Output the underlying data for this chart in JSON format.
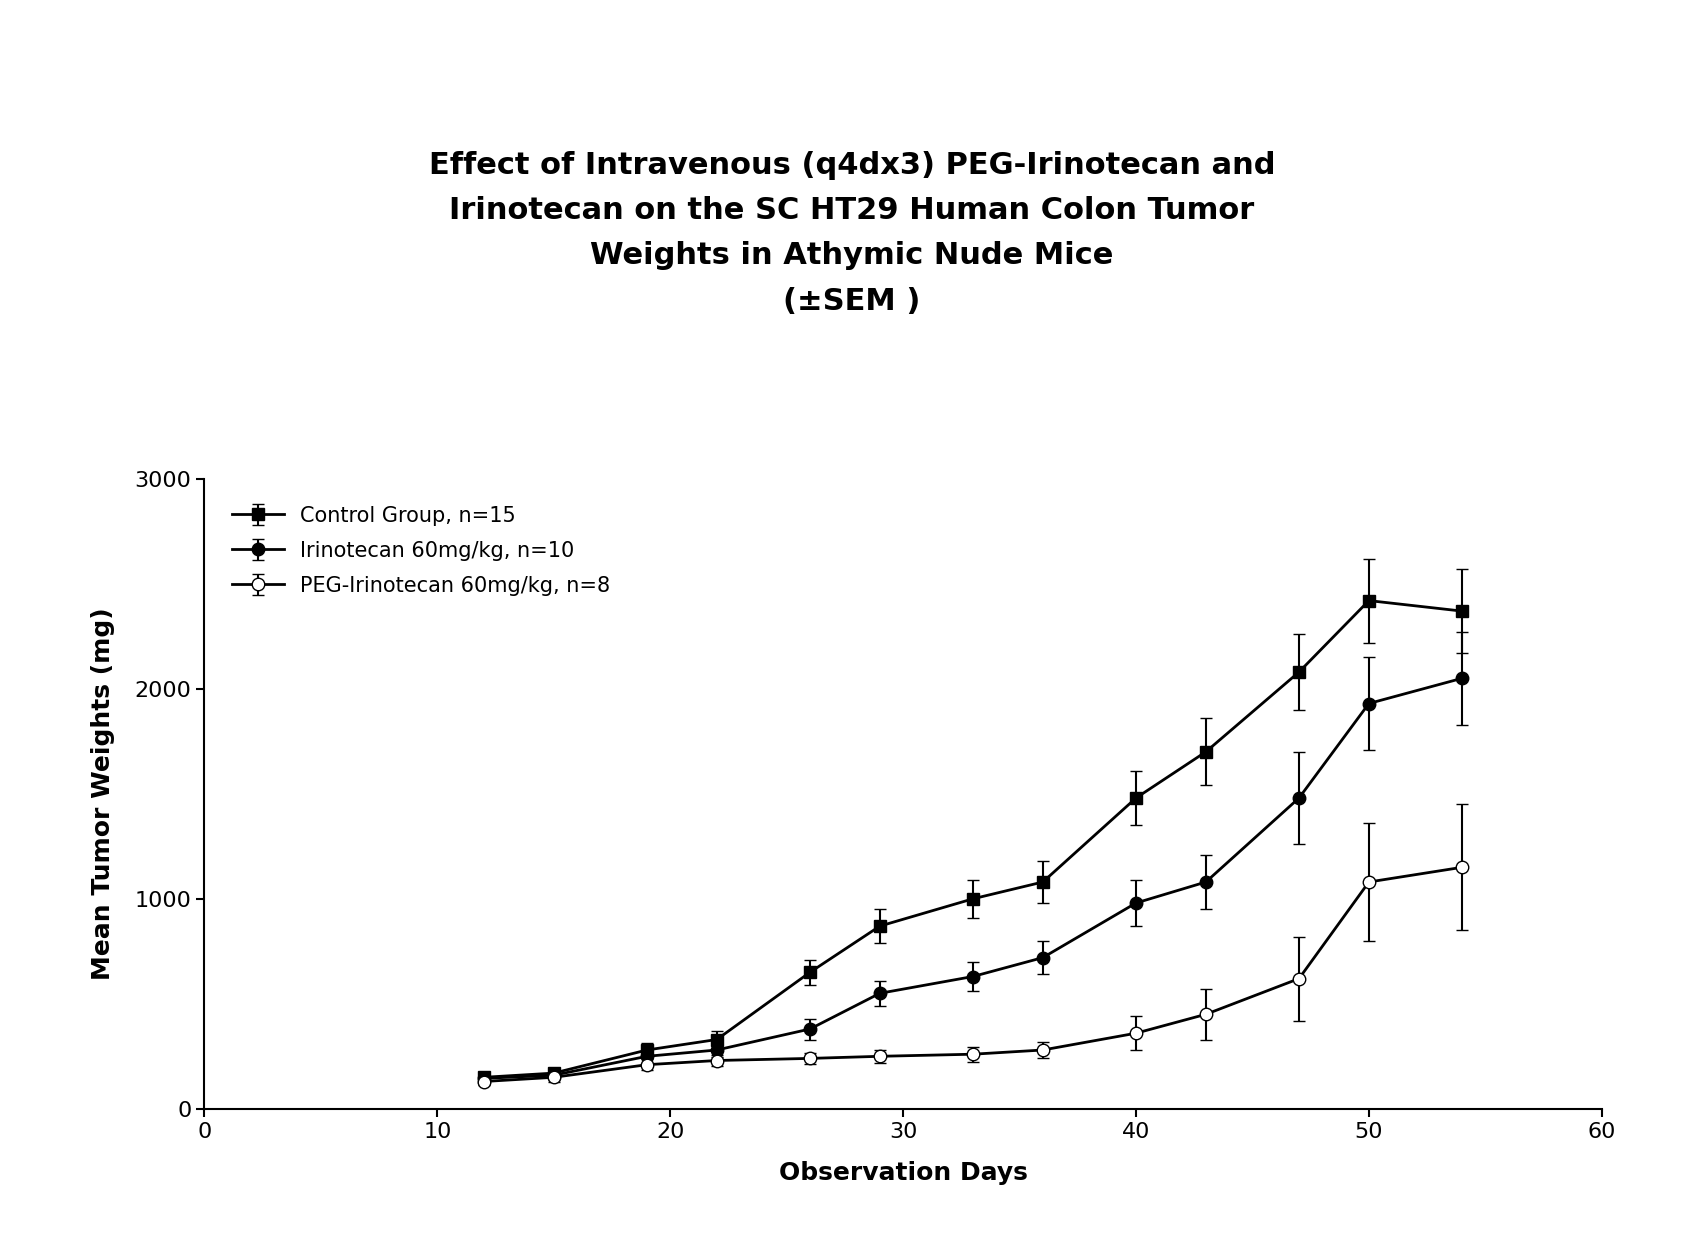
{
  "title": "Effect of Intravenous (q4dx3) PEG-Irinotecan and\nIrinotecan on the SC HT29 Human Colon Tumor\nWeights in Athymic Nude Mice\n(±SEM )",
  "xlabel": "Observation Days",
  "ylabel": "Mean Tumor Weights (mg)",
  "xlim": [
    0,
    60
  ],
  "ylim": [
    0,
    3000
  ],
  "xticks": [
    0,
    10,
    20,
    30,
    40,
    50,
    60
  ],
  "yticks": [
    0,
    1000,
    2000,
    3000
  ],
  "legend_labels": [
    "Control Group, n=15",
    "Irinotecan 60mg/kg, n=10",
    "PEG-Irinotecan 60mg/kg, n=8"
  ],
  "control": {
    "x": [
      12,
      15,
      19,
      22,
      26,
      29,
      33,
      36,
      40,
      43,
      47,
      50,
      54
    ],
    "y": [
      150,
      170,
      280,
      330,
      650,
      870,
      1000,
      1080,
      1480,
      1700,
      2080,
      2420,
      2370
    ],
    "yerr": [
      20,
      25,
      35,
      40,
      60,
      80,
      90,
      100,
      130,
      160,
      180,
      200,
      200
    ]
  },
  "irinotecan": {
    "x": [
      12,
      15,
      19,
      22,
      26,
      29,
      33,
      36,
      40,
      43,
      47,
      50,
      54
    ],
    "y": [
      145,
      160,
      250,
      280,
      380,
      550,
      630,
      720,
      980,
      1080,
      1480,
      1930,
      2050
    ],
    "yerr": [
      18,
      22,
      30,
      35,
      50,
      60,
      70,
      80,
      110,
      130,
      220,
      220,
      220
    ]
  },
  "peg_irinotecan": {
    "x": [
      12,
      15,
      19,
      22,
      26,
      29,
      33,
      36,
      40,
      43,
      47,
      50,
      54
    ],
    "y": [
      130,
      150,
      210,
      230,
      240,
      250,
      260,
      280,
      360,
      450,
      620,
      1080,
      1150
    ],
    "yerr": [
      15,
      20,
      25,
      25,
      25,
      30,
      35,
      40,
      80,
      120,
      200,
      280,
      300
    ]
  },
  "line_color": "#000000",
  "background_color": "#ffffff",
  "title_fontsize": 22,
  "label_fontsize": 18,
  "tick_fontsize": 16,
  "legend_fontsize": 15
}
